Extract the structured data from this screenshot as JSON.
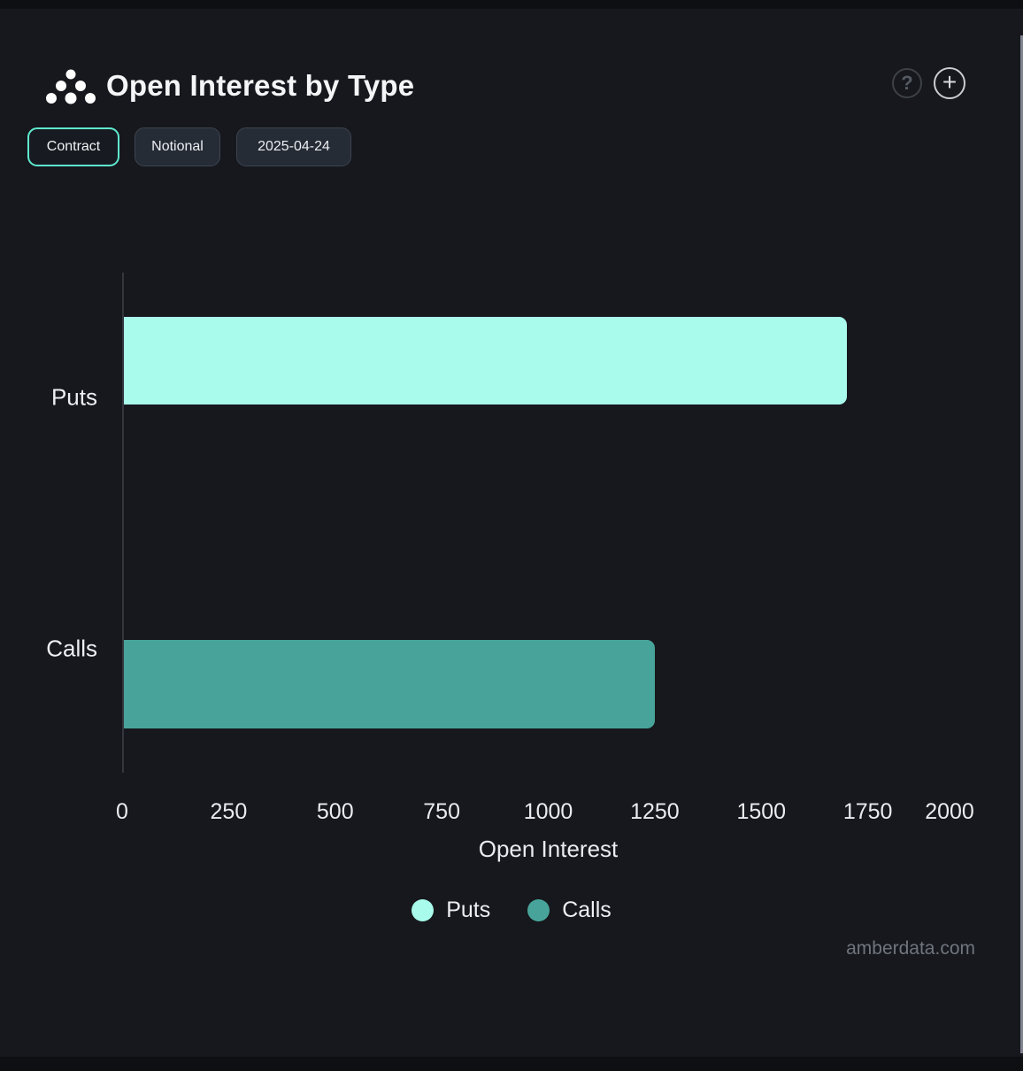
{
  "header": {
    "title": "Open Interest by Type",
    "logo_icon": "amberdata-logo-dots",
    "help_icon": "?",
    "add_icon": "+"
  },
  "toolbar": {
    "buttons": [
      {
        "label": "Contract",
        "active": true
      },
      {
        "label": "Notional",
        "active": false
      },
      {
        "label": "2025-04-24",
        "active": false
      }
    ]
  },
  "chart_data": {
    "type": "bar",
    "orientation": "horizontal",
    "title": "Open Interest by Type",
    "categories": [
      "Puts",
      "Calls"
    ],
    "values": [
      1700,
      1250
    ],
    "colors": [
      "#a9fbec",
      "#48a49b"
    ],
    "xlabel": "Open Interest",
    "ylabel": "",
    "xlim": [
      0,
      2000
    ],
    "xticks": [
      0,
      250,
      500,
      750,
      1000,
      1250,
      1500,
      1750,
      2000
    ],
    "grid": false,
    "legend_position": "bottom",
    "legend": [
      {
        "label": "Puts",
        "color": "#a9fbec"
      },
      {
        "label": "Calls",
        "color": "#48a49b"
      }
    ]
  },
  "watermark": "amberdata.com",
  "colors": {
    "background": "#16181d",
    "page_edge": "#0e0f12",
    "accent_active": "#5fe9cf",
    "puts_bar": "#a9fbec",
    "calls_bar": "#48a49b",
    "axis_line": "#33363c",
    "text_primary": "#edeff2",
    "text_muted": "#70757d"
  }
}
